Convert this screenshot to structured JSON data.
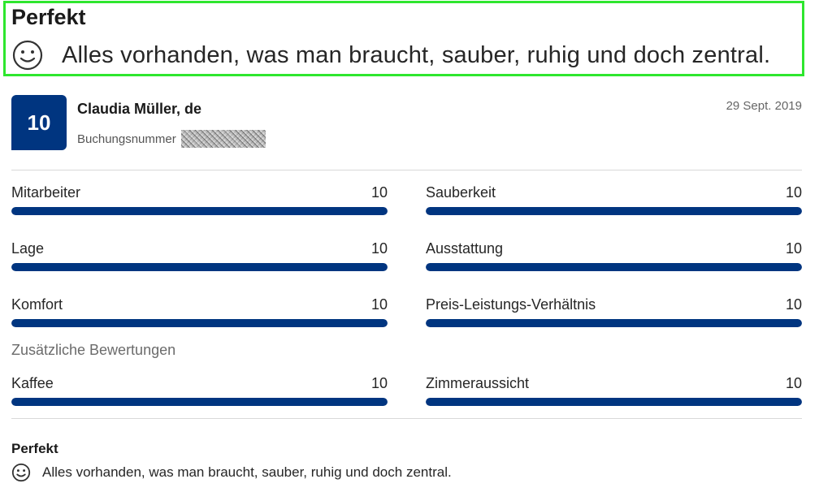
{
  "highlight": {
    "title": "Perfekt",
    "icon": "smile-icon",
    "text": "Alles vorhanden, was man braucht, sauber, ruhig und doch zentral.",
    "border_color": "#2ee62e"
  },
  "review": {
    "score": "10",
    "reviewer": "Claudia Müller, de",
    "booking_label": "Buchungsnummer",
    "date": "29 Sept. 2019",
    "accent_color": "#003580"
  },
  "ratings": [
    {
      "label": "Mitarbeiter",
      "value": "10",
      "fraction": 1.0
    },
    {
      "label": "Sauberkeit",
      "value": "10",
      "fraction": 1.0
    },
    {
      "label": "Lage",
      "value": "10",
      "fraction": 1.0
    },
    {
      "label": "Ausstattung",
      "value": "10",
      "fraction": 1.0
    },
    {
      "label": "Komfort",
      "value": "10",
      "fraction": 1.0
    },
    {
      "label": "Preis-Leistungs-Verhältnis",
      "value": "10",
      "fraction": 1.0
    }
  ],
  "extra": {
    "heading": "Zusätzliche Bewertungen",
    "ratings": [
      {
        "label": "Kaffee",
        "value": "10",
        "fraction": 1.0
      },
      {
        "label": "Zimmeraussicht",
        "value": "10",
        "fraction": 1.0
      }
    ]
  },
  "bottom": {
    "title": "Perfekt",
    "icon": "smile-icon",
    "text": "Alles vorhanden, was man braucht, sauber, ruhig und doch zentral."
  }
}
